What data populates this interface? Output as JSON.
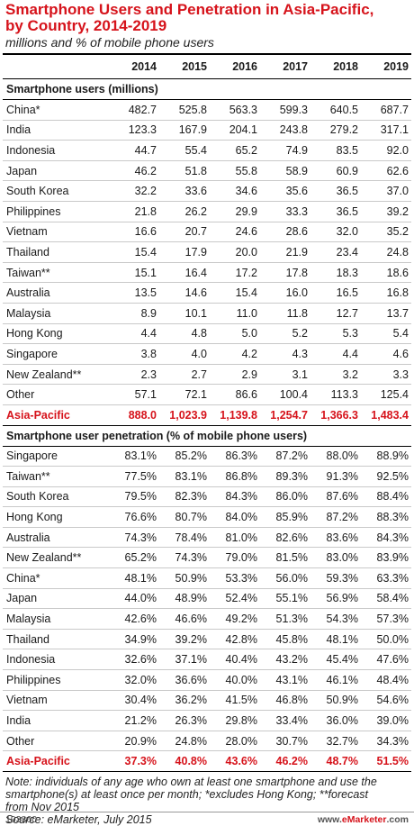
{
  "title_line1": "Smartphone Users and Penetration in Asia-Pacific,",
  "title_line2": "by Country, 2014-2019",
  "subtitle": "millions and % of mobile phone users",
  "columns": [
    "",
    "2014",
    "2015",
    "2016",
    "2017",
    "2018",
    "2019"
  ],
  "sections": [
    {
      "heading": "Smartphone users (millions)",
      "rows": [
        {
          "label": "China*",
          "values": [
            "482.7",
            "525.8",
            "563.3",
            "599.3",
            "640.5",
            "687.7"
          ]
        },
        {
          "label": "India",
          "values": [
            "123.3",
            "167.9",
            "204.1",
            "243.8",
            "279.2",
            "317.1"
          ]
        },
        {
          "label": "Indonesia",
          "values": [
            "44.7",
            "55.4",
            "65.2",
            "74.9",
            "83.5",
            "92.0"
          ]
        },
        {
          "label": "Japan",
          "values": [
            "46.2",
            "51.8",
            "55.8",
            "58.9",
            "60.9",
            "62.6"
          ]
        },
        {
          "label": "South Korea",
          "values": [
            "32.2",
            "33.6",
            "34.6",
            "35.6",
            "36.5",
            "37.0"
          ]
        },
        {
          "label": "Philippines",
          "values": [
            "21.8",
            "26.2",
            "29.9",
            "33.3",
            "36.5",
            "39.2"
          ]
        },
        {
          "label": "Vietnam",
          "values": [
            "16.6",
            "20.7",
            "24.6",
            "28.6",
            "32.0",
            "35.2"
          ]
        },
        {
          "label": "Thailand",
          "values": [
            "15.4",
            "17.9",
            "20.0",
            "21.9",
            "23.4",
            "24.8"
          ]
        },
        {
          "label": "Taiwan**",
          "values": [
            "15.1",
            "16.4",
            "17.2",
            "17.8",
            "18.3",
            "18.6"
          ]
        },
        {
          "label": "Australia",
          "values": [
            "13.5",
            "14.6",
            "15.4",
            "16.0",
            "16.5",
            "16.8"
          ]
        },
        {
          "label": "Malaysia",
          "values": [
            "8.9",
            "10.1",
            "11.0",
            "11.8",
            "12.7",
            "13.7"
          ]
        },
        {
          "label": "Hong Kong",
          "values": [
            "4.4",
            "4.8",
            "5.0",
            "5.2",
            "5.3",
            "5.4"
          ]
        },
        {
          "label": "Singapore",
          "values": [
            "3.8",
            "4.0",
            "4.2",
            "4.3",
            "4.4",
            "4.6"
          ]
        },
        {
          "label": "New Zealand**",
          "values": [
            "2.3",
            "2.7",
            "2.9",
            "3.1",
            "3.2",
            "3.3"
          ]
        },
        {
          "label": "Other",
          "values": [
            "57.1",
            "72.1",
            "86.6",
            "100.4",
            "113.3",
            "125.4"
          ]
        }
      ],
      "total": {
        "label": "Asia-Pacific",
        "values": [
          "888.0",
          "1,023.9",
          "1,139.8",
          "1,254.7",
          "1,366.3",
          "1,483.4"
        ]
      }
    },
    {
      "heading": "Smartphone user penetration (% of mobile phone users)",
      "rows": [
        {
          "label": "Singapore",
          "values": [
            "83.1%",
            "85.2%",
            "86.3%",
            "87.2%",
            "88.0%",
            "88.9%"
          ]
        },
        {
          "label": "Taiwan**",
          "values": [
            "77.5%",
            "83.1%",
            "86.8%",
            "89.3%",
            "91.3%",
            "92.5%"
          ]
        },
        {
          "label": "South Korea",
          "values": [
            "79.5%",
            "82.3%",
            "84.3%",
            "86.0%",
            "87.6%",
            "88.4%"
          ]
        },
        {
          "label": "Hong Kong",
          "values": [
            "76.6%",
            "80.7%",
            "84.0%",
            "85.9%",
            "87.2%",
            "88.3%"
          ]
        },
        {
          "label": "Australia",
          "values": [
            "74.3%",
            "78.4%",
            "81.0%",
            "82.6%",
            "83.6%",
            "84.3%"
          ]
        },
        {
          "label": "New Zealand**",
          "values": [
            "65.2%",
            "74.3%",
            "79.0%",
            "81.5%",
            "83.0%",
            "83.9%"
          ]
        },
        {
          "label": "China*",
          "values": [
            "48.1%",
            "50.9%",
            "53.3%",
            "56.0%",
            "59.3%",
            "63.3%"
          ]
        },
        {
          "label": "Japan",
          "values": [
            "44.0%",
            "48.9%",
            "52.4%",
            "55.1%",
            "56.9%",
            "58.4%"
          ]
        },
        {
          "label": "Malaysia",
          "values": [
            "42.6%",
            "46.6%",
            "49.2%",
            "51.3%",
            "54.3%",
            "57.3%"
          ]
        },
        {
          "label": "Thailand",
          "values": [
            "34.9%",
            "39.2%",
            "42.8%",
            "45.8%",
            "48.1%",
            "50.0%"
          ]
        },
        {
          "label": "Indonesia",
          "values": [
            "32.6%",
            "37.1%",
            "40.4%",
            "43.2%",
            "45.4%",
            "47.6%"
          ]
        },
        {
          "label": "Philippines",
          "values": [
            "32.0%",
            "36.6%",
            "40.0%",
            "43.1%",
            "46.1%",
            "48.4%"
          ]
        },
        {
          "label": "Vietnam",
          "values": [
            "30.4%",
            "36.2%",
            "41.5%",
            "46.8%",
            "50.9%",
            "54.6%"
          ]
        },
        {
          "label": "India",
          "values": [
            "21.2%",
            "26.3%",
            "29.8%",
            "33.4%",
            "36.0%",
            "39.0%"
          ]
        },
        {
          "label": "Other",
          "values": [
            "20.9%",
            "24.8%",
            "28.0%",
            "30.7%",
            "32.7%",
            "34.3%"
          ]
        }
      ],
      "total": {
        "label": "Asia-Pacific",
        "values": [
          "37.3%",
          "40.8%",
          "43.6%",
          "46.2%",
          "48.7%",
          "51.5%"
        ]
      }
    }
  ],
  "note_line1": "Note: individuals of any age who own at least one smartphone and use the",
  "note_line2": "smartphone(s) at least once per month; *excludes Hong Kong; **forecast",
  "note_line3": "from Nov 2015",
  "source": "Source: eMarketer, July 2015",
  "chart_id": "193860",
  "brand_prefix": "www.",
  "brand_name": "eMarketer",
  "brand_suffix": ".com",
  "colors": {
    "accent": "#d6131b",
    "text": "#1a1a1a",
    "rule": "#c9c9c9"
  }
}
